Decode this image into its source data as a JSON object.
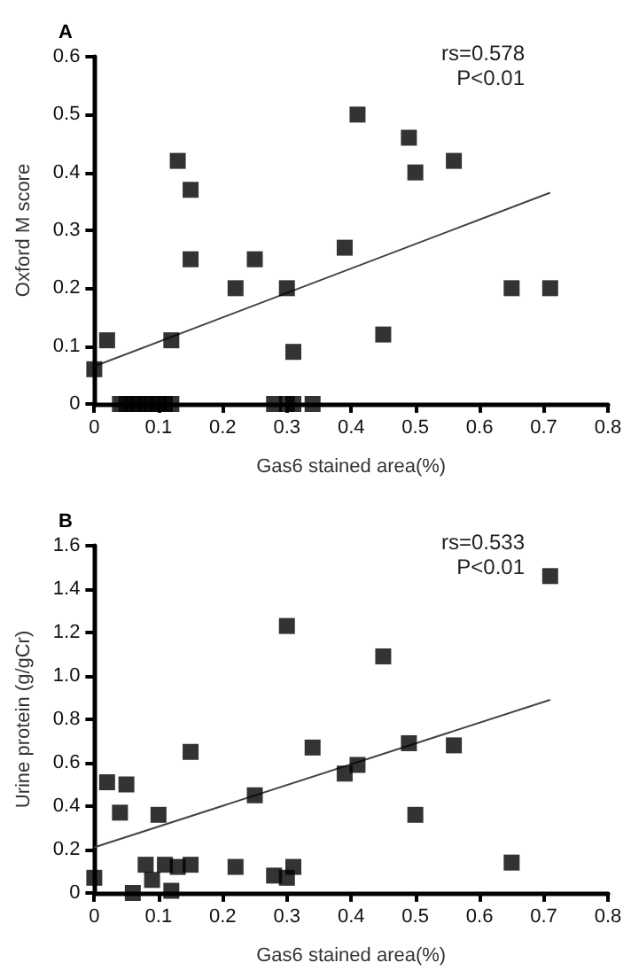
{
  "chart_data": [
    {
      "type": "scatter",
      "title": "A",
      "xlabel": "Gas6 stained area(%)",
      "ylabel": "Oxford M score",
      "annotations": [
        "rs=0.578",
        "P<0.01"
      ],
      "xlim": [
        0,
        0.8
      ],
      "xticks": [
        0,
        0.1,
        0.2,
        0.3,
        0.4,
        0.5,
        0.6,
        0.7,
        0.8
      ],
      "ylim": [
        0,
        0.6
      ],
      "yticks": [
        0,
        0.1,
        0.2,
        0.3,
        0.4,
        0.5,
        0.6
      ],
      "marker": "square",
      "series": [
        {
          "color": "#000000",
          "x": [
            0.0,
            0.01,
            0.02,
            0.12,
            0.13,
            0.15,
            0.15,
            0.22,
            0.25,
            0.3,
            0.31,
            0.39,
            0.41,
            0.45,
            0.49,
            0.5,
            0.56,
            0.65,
            0.71,
            0.04,
            0.05,
            0.06,
            0.07,
            0.08,
            0.09,
            0.1,
            0.11,
            0.12,
            0.28,
            0.3,
            0.31,
            0.34
          ],
          "values": [
            0.06,
            null,
            0.11,
            0.11,
            0.42,
            0.37,
            0.25,
            0.2,
            0.25,
            0.2,
            0.09,
            0.27,
            0.5,
            0.12,
            0.46,
            0.4,
            0.42,
            0.2,
            0.2,
            0,
            0,
            0,
            0,
            0,
            0,
            0,
            0,
            0,
            0,
            0,
            0,
            0
          ]
        },
        {
          "type": "line",
          "color": "#444444",
          "marker": "none",
          "x": [
            0,
            0.71
          ],
          "values": [
            0.065,
            0.365
          ]
        }
      ]
    },
    {
      "type": "scatter",
      "title": "B",
      "xlabel": "Gas6 stained area(%)",
      "ylabel": "Urine protein (g/gCr)",
      "annotations": [
        "rs=0.533",
        "P<0.01"
      ],
      "xlim": [
        0,
        0.8
      ],
      "xticks": [
        0,
        0.1,
        0.2,
        0.3,
        0.4,
        0.5,
        0.6,
        0.7,
        0.8
      ],
      "ylim": [
        0,
        1.6
      ],
      "yticks": [
        0,
        0.2,
        0.4,
        0.6,
        0.8,
        {
          "value": 1,
          "label": "1.0"
        },
        1.2,
        1.4,
        1.6
      ],
      "marker": "square",
      "series": [
        {
          "color": "#000000",
          "x": [
            0.0,
            0.01,
            0.02,
            0.04,
            0.05,
            0.06,
            0.08,
            0.09,
            0.1,
            0.11,
            0.12,
            0.13,
            0.15,
            0.15,
            0.22,
            0.25,
            0.28,
            0.3,
            0.3,
            0.31,
            0.34,
            0.39,
            0.41,
            0.45,
            0.49,
            0.5,
            0.56,
            0.65,
            0.71
          ],
          "values": [
            0.07,
            null,
            0.51,
            0.37,
            0.5,
            0.0,
            0.13,
            0.06,
            0.36,
            0.13,
            0.01,
            0.12,
            0.13,
            0.65,
            0.12,
            0.45,
            0.08,
            0.07,
            1.23,
            0.12,
            0.67,
            0.55,
            0.59,
            1.09,
            0.69,
            0.36,
            0.68,
            0.14,
            1.46
          ]
        },
        {
          "type": "line",
          "color": "#444444",
          "marker": "none",
          "x": [
            0,
            0.71
          ],
          "values": [
            0.21,
            0.89
          ]
        }
      ]
    }
  ]
}
